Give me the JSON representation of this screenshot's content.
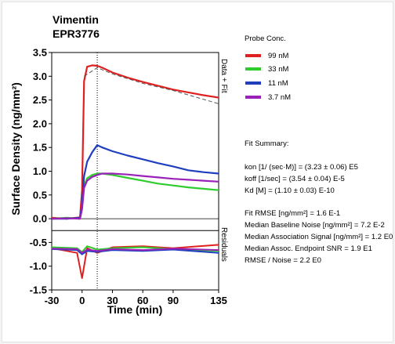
{
  "colors": {
    "99 nM": "#e02020",
    "33 nM": "#2ecc2e",
    "11 nM": "#1f3fbf",
    "3.7 nM": "#9a22b8",
    "fit_line": "#555555"
  },
  "chart_data": {
    "type": "line",
    "title": "Vimentin",
    "subtitle": "EPR3776",
    "xlabel": "Time (min)",
    "ylabel": "Surface Density (ng/mm²)",
    "xlim": [
      -30,
      135
    ],
    "ylim": [
      -1.5,
      3.5
    ],
    "x_ticks": [
      "-30",
      "0",
      "30",
      "60",
      "90",
      "135"
    ],
    "y_ticks": [
      "3.5",
      "3.0",
      "2.5",
      "2.0",
      "1.5",
      "1.0",
      "0.5",
      "0.0",
      "-0.5",
      "-1.0",
      "-1.5"
    ],
    "right_labels": {
      "upper": "Data + Fit",
      "lower": "Residuals"
    },
    "association_end_x": 15,
    "legend_title": "Probe Conc.",
    "series": [
      {
        "name": "99 nM",
        "x": [
          -30,
          -15,
          -2,
          0,
          2,
          5,
          10,
          15,
          20,
          30,
          45,
          60,
          75,
          90,
          105,
          120,
          135
        ],
        "y": [
          0.02,
          0.0,
          0.03,
          0.6,
          2.9,
          3.2,
          3.23,
          3.22,
          3.18,
          3.08,
          2.97,
          2.88,
          2.8,
          2.72,
          2.66,
          2.6,
          2.55
        ]
      },
      {
        "name": "33 nM",
        "x": [
          -30,
          -15,
          -2,
          0,
          2,
          5,
          10,
          15,
          20,
          30,
          45,
          60,
          75,
          90,
          105,
          120,
          135
        ],
        "y": [
          0.0,
          0.02,
          0.0,
          0.3,
          0.7,
          0.85,
          0.92,
          0.95,
          0.95,
          0.92,
          0.86,
          0.8,
          0.74,
          0.7,
          0.66,
          0.63,
          0.6
        ]
      },
      {
        "name": "11 nM",
        "x": [
          -30,
          -15,
          -2,
          0,
          2,
          5,
          10,
          15,
          20,
          30,
          45,
          60,
          75,
          90,
          105,
          120,
          135
        ],
        "y": [
          0.0,
          0.0,
          0.02,
          0.3,
          0.9,
          1.2,
          1.4,
          1.55,
          1.5,
          1.42,
          1.33,
          1.25,
          1.17,
          1.1,
          1.02,
          0.98,
          0.95
        ]
      },
      {
        "name": "3.7 nM",
        "x": [
          -30,
          -15,
          -2,
          0,
          2,
          5,
          10,
          15,
          20,
          30,
          45,
          60,
          75,
          90,
          105,
          120,
          135
        ],
        "y": [
          0.0,
          0.01,
          0.0,
          0.2,
          0.65,
          0.8,
          0.88,
          0.92,
          0.95,
          0.95,
          0.93,
          0.9,
          0.87,
          0.84,
          0.82,
          0.8,
          0.78
        ]
      }
    ],
    "residual_series": [
      {
        "name": "99 nM",
        "x": [
          -30,
          -5,
          0,
          5,
          15,
          30,
          60,
          90,
          135
        ],
        "y": [
          -0.62,
          -0.72,
          -1.25,
          -0.62,
          -0.72,
          -0.6,
          -0.58,
          -0.62,
          -0.55
        ]
      },
      {
        "name": "33 nM",
        "x": [
          -30,
          -5,
          0,
          5,
          15,
          30,
          60,
          90,
          135
        ],
        "y": [
          -0.6,
          -0.62,
          -0.7,
          -0.58,
          -0.65,
          -0.62,
          -0.6,
          -0.64,
          -0.68
        ]
      },
      {
        "name": "11 nM",
        "x": [
          -30,
          -5,
          0,
          5,
          15,
          30,
          60,
          90,
          135
        ],
        "y": [
          -0.64,
          -0.66,
          -0.75,
          -0.68,
          -0.7,
          -0.66,
          -0.68,
          -0.65,
          -0.72
        ]
      },
      {
        "name": "3.7 nM",
        "x": [
          -30,
          -5,
          0,
          5,
          15,
          30,
          60,
          90,
          135
        ],
        "y": [
          -0.63,
          -0.64,
          -0.72,
          -0.65,
          -0.68,
          -0.64,
          -0.66,
          -0.63,
          -0.66
        ]
      }
    ],
    "fit": {
      "x": [
        2,
        15,
        30,
        60,
        90,
        135
      ],
      "y": [
        3.0,
        3.18,
        3.05,
        2.85,
        2.7,
        2.42
      ]
    }
  },
  "fit_summary": {
    "title": "Fit Summary:",
    "lines": [
      "kon  [1/ (sec·M)]  =  (3.23 ± 0.06) E5",
      "koff  [1/sec]  =  (3.54 ± 0.04) E-5",
      "Kd  [M]  =  (1.10 ± 0.03) E-10"
    ],
    "stats": [
      "Fit RMSE [ng/mm²]  =  1.6 E-1",
      "Median Baseline Noise [ng/mm²]  =  7.2 E-2",
      "Median Association Signal [ng/mm²]  =  1.2 E0",
      "Median Assoc. Endpoint SNR  =  1.9 E1",
      "RMSE / Noise  =  2.2 E0"
    ]
  }
}
